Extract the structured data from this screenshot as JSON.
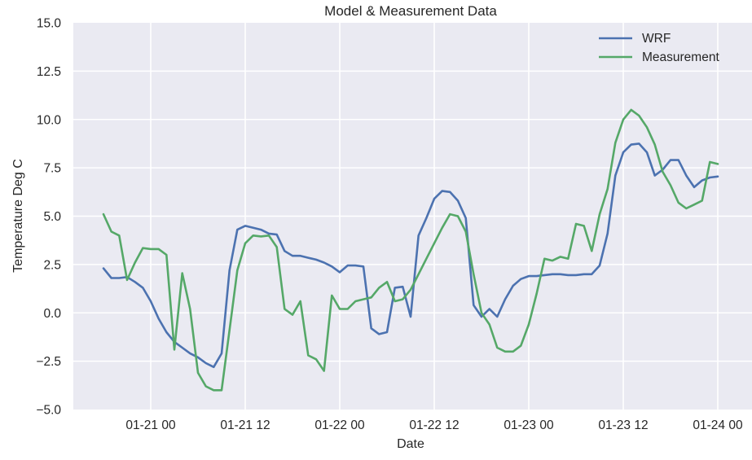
{
  "chart_data": {
    "type": "line",
    "title": "Model & Measurement Data",
    "xlabel": "Date",
    "ylabel": "Temperature Deg C",
    "ylim": [
      -5.0,
      15.0
    ],
    "yticks": [
      "-5.0",
      "-2.5",
      "0.0",
      "2.5",
      "5.0",
      "7.5",
      "10.0",
      "12.5",
      "15.0"
    ],
    "ytick_values": [
      -5.0,
      -2.5,
      0.0,
      2.5,
      5.0,
      7.5,
      10.0,
      12.5,
      15.0
    ],
    "xticks": [
      "01-21 00",
      "01-21 12",
      "01-22 00",
      "01-22 12",
      "01-23 00",
      "01-23 12",
      "01-24 00"
    ],
    "xtick_hours": [
      6,
      18,
      30,
      42,
      54,
      66,
      78
    ],
    "x_start": "01-20 18:00",
    "x_step": "1 hour",
    "x_range_hours": [
      -3.8,
      82.3
    ],
    "grid": true,
    "legend_position": "upper right",
    "background": "#eaeaf2",
    "series": [
      {
        "name": "WRF",
        "color": "#4c72b0",
        "values": [
          2.3,
          1.8,
          1.8,
          1.85,
          1.6,
          1.3,
          0.6,
          -0.3,
          -1.0,
          -1.5,
          -1.8,
          -2.1,
          -2.3,
          -2.6,
          -2.8,
          -2.1,
          2.2,
          4.3,
          4.5,
          4.4,
          4.3,
          4.1,
          4.05,
          3.2,
          2.95,
          2.95,
          2.85,
          2.75,
          2.6,
          2.4,
          2.1,
          2.45,
          2.45,
          2.4,
          -0.8,
          -1.1,
          -1.0,
          1.3,
          1.35,
          -0.2,
          4.0,
          4.9,
          5.9,
          6.3,
          6.25,
          5.8,
          4.9,
          0.4,
          -0.2,
          0.2,
          -0.2,
          0.7,
          1.4,
          1.75,
          1.9,
          1.9,
          1.95,
          2.0,
          2.0,
          1.95,
          1.95,
          2.0,
          2.0,
          2.45,
          4.1,
          7.1,
          8.3,
          8.7,
          8.75,
          8.3,
          7.1,
          7.4,
          7.9,
          7.9,
          7.1,
          6.5,
          6.85,
          7.0,
          7.05
        ]
      },
      {
        "name": "Measurement",
        "color": "#55a868",
        "values": [
          5.1,
          4.2,
          4.0,
          1.7,
          2.6,
          3.35,
          3.3,
          3.3,
          3.0,
          -1.9,
          2.05,
          0.2,
          -3.1,
          -3.8,
          -4.0,
          -4.0,
          -0.9,
          2.2,
          3.6,
          4.0,
          3.95,
          4.0,
          3.4,
          0.2,
          -0.1,
          0.6,
          -2.2,
          -2.4,
          -3.0,
          0.9,
          0.2,
          0.2,
          0.6,
          0.7,
          0.8,
          1.3,
          1.6,
          0.6,
          0.7,
          1.2,
          2.0,
          2.8,
          3.6,
          4.4,
          5.1,
          5.0,
          4.2,
          2.0,
          0.0,
          -0.6,
          -1.8,
          -2.0,
          -2.0,
          -1.7,
          -0.6,
          1.0,
          2.8,
          2.7,
          2.9,
          2.8,
          4.6,
          4.5,
          3.2,
          5.1,
          6.4,
          8.8,
          10.0,
          10.5,
          10.2,
          9.6,
          8.7,
          7.3,
          6.6,
          5.7,
          5.4,
          5.6,
          5.8,
          7.8,
          7.7
        ]
      }
    ]
  },
  "legend": {
    "items": [
      {
        "label": "WRF",
        "color": "#4c72b0"
      },
      {
        "label": "Measurement",
        "color": "#55a868"
      }
    ]
  }
}
